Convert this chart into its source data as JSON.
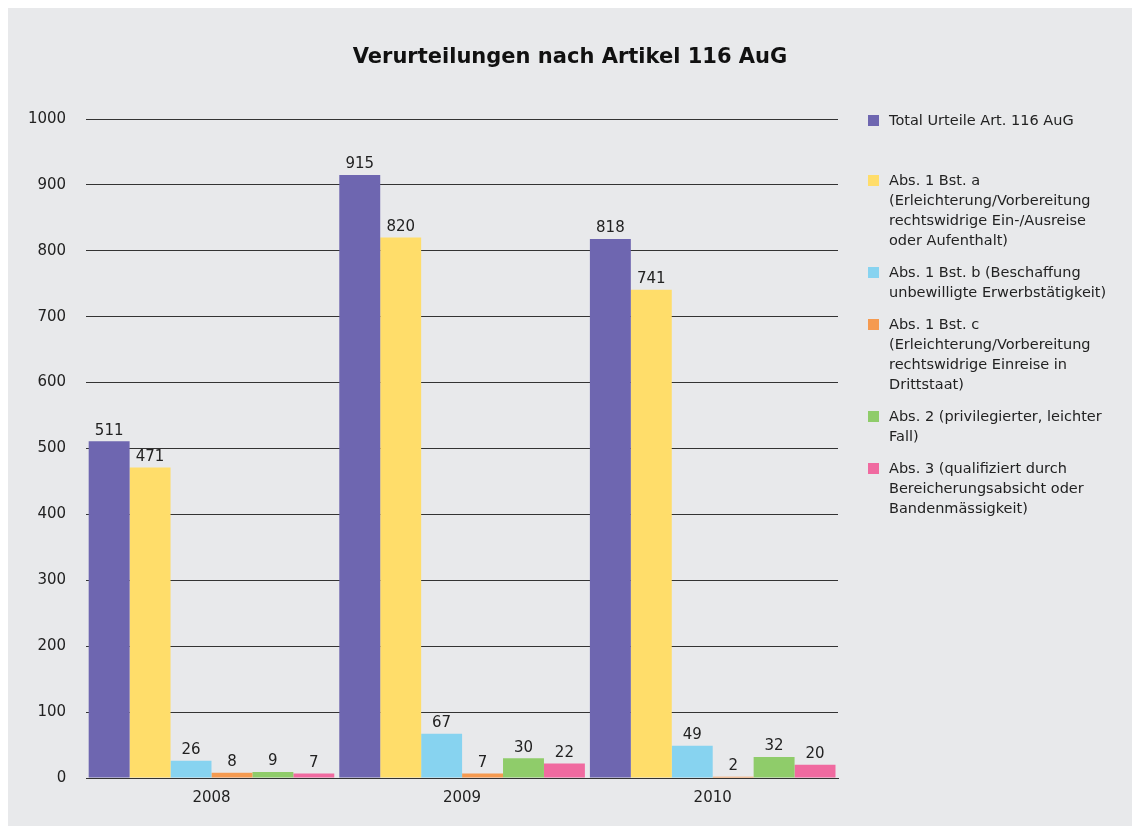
{
  "chart_data": {
    "type": "bar",
    "title": "Verurteilungen nach Artikel 116 AuG",
    "categories": [
      "2008",
      "2009",
      "2010"
    ],
    "series": [
      {
        "name": "Total Urteile Art. 116 AuG",
        "color": "#6e66b0",
        "values": [
          511,
          915,
          818
        ]
      },
      {
        "name": "Abs. 1 Bst. a (Erleichterung/Vorbereitung rechtswidrige Ein-/Ausreise oder Aufenthalt)",
        "color": "#ffdd6a",
        "values": [
          471,
          820,
          741
        ]
      },
      {
        "name": "Abs. 1 Bst. b (Beschaffung unbewilligte Erwerbstätigkeit)",
        "color": "#87d3f0",
        "values": [
          26,
          67,
          49
        ]
      },
      {
        "name": "Abs. 1 Bst. c (Erleichterung/Vorbereitung rechtswidrige Einreise in Drittstaat)",
        "color": "#f59a50",
        "values": [
          8,
          7,
          2
        ]
      },
      {
        "name": "Abs. 2 (privilegierter, leichter Fall)",
        "color": "#8fcc6a",
        "values": [
          9,
          30,
          32
        ]
      },
      {
        "name": "Abs. 3 (qualifiziert durch Bereicherungsabsicht oder Bandenmässigkeit)",
        "color": "#f06aa0",
        "values": [
          7,
          22,
          20
        ]
      }
    ],
    "ylim": [
      0,
      1000
    ],
    "yticks": [
      0,
      100,
      200,
      300,
      400,
      500,
      600,
      700,
      800,
      900,
      1000
    ],
    "grid": "y",
    "legend": "right",
    "data_labels": true
  }
}
